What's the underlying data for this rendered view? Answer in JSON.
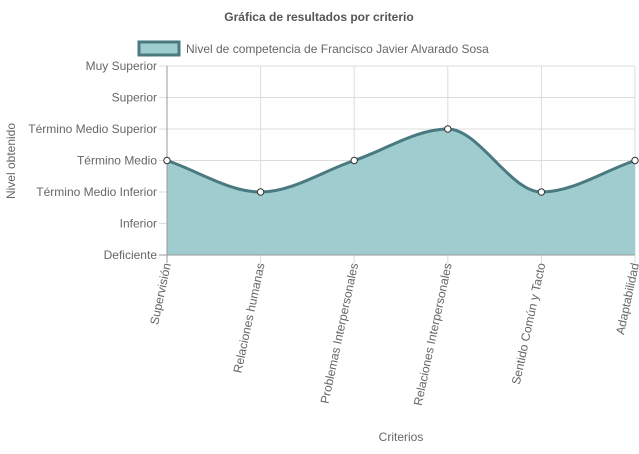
{
  "chart_data": {
    "type": "area",
    "title": "Gráfica de resultados por criterio",
    "xlabel": "Criterios",
    "ylabel": "Nivel obtenido",
    "categories": [
      "Supervisión",
      "Relaciones humanas",
      "Problemas Interpersonales",
      "Relaciones Interpersonales",
      "Sentido Común y Tacto",
      "Adaptabilidad"
    ],
    "y_levels": [
      "Deficiente",
      "Inferior",
      "Término Medio Inferior",
      "Término Medio",
      "Término Medio Superior",
      "Superior",
      "Muy Superior"
    ],
    "ylim": [
      0,
      6
    ],
    "series": [
      {
        "name": "Nivel de competencia de Francisco Javier Alvarado Sosa",
        "values": [
          3,
          2,
          3,
          4,
          2,
          3
        ],
        "fill_color": "#9ecccf",
        "line_color": "#4a7a80"
      }
    ],
    "grid": true,
    "legend_position": "top"
  }
}
